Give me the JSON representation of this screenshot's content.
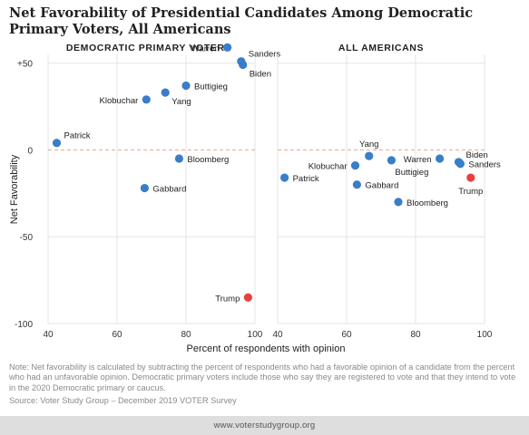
{
  "title": "Net Favorability of Presidential Candidates Among Democratic Primary Voters, All Americans",
  "note": "Note: Net favorability is calculated by subtracting the percent of respondents who had a favorable opinion of a candidate from the percent who had an unfavorable opinion. Democratic primary voters include those who say they are registered to vote and that they intend to vote in the 2020 Democratic primary or caucus.",
  "source": "Source: Voter Study Group – December 2019 VOTER Survey",
  "footer": "www.voterstudygroup.org",
  "colors": {
    "democrat": "#3a7dc9",
    "trump": "#e8413d",
    "zero_line": "#f0a08a",
    "grid": "#e6e6e6"
  },
  "chart_data": [
    {
      "type": "scatter",
      "title": "DEMOCRATIC PRIMARY VOTERS",
      "xlabel": "Percent of respondents with opinion",
      "ylabel": "Net Favorability",
      "xlim": [
        40,
        100
      ],
      "ylim": [
        -100,
        55
      ],
      "xticks": [
        "40",
        "60",
        "80",
        "100"
      ],
      "yticks": [
        "+50",
        "0",
        "-50",
        "-100"
      ],
      "grid": true,
      "points": [
        {
          "label": "Warren",
          "x": 92,
          "y": 59,
          "color": "democrat",
          "label_side": "left"
        },
        {
          "label": "Sanders",
          "x": 96,
          "y": 51,
          "color": "democrat",
          "label_side": "upper-right"
        },
        {
          "label": "Biden",
          "x": 96.5,
          "y": 49,
          "color": "democrat",
          "label_side": "lower-right"
        },
        {
          "label": "Buttigieg",
          "x": 80,
          "y": 37,
          "color": "democrat",
          "label_side": "right"
        },
        {
          "label": "Yang",
          "x": 74,
          "y": 33,
          "color": "democrat",
          "label_side": "lower-right"
        },
        {
          "label": "Klobuchar",
          "x": 68.5,
          "y": 29,
          "color": "democrat",
          "label_side": "left"
        },
        {
          "label": "Patrick",
          "x": 42.5,
          "y": 4,
          "color": "democrat",
          "label_side": "upper-right"
        },
        {
          "label": "Bloomberg",
          "x": 78,
          "y": -5,
          "color": "democrat",
          "label_side": "right"
        },
        {
          "label": "Gabbard",
          "x": 68,
          "y": -22,
          "color": "democrat",
          "label_side": "right"
        },
        {
          "label": "Trump",
          "x": 98,
          "y": -85,
          "color": "trump",
          "label_side": "left"
        }
      ]
    },
    {
      "type": "scatter",
      "title": "ALL AMERICANS",
      "xlabel": "Percent of respondents with opinion",
      "ylabel": "",
      "xlim": [
        40,
        100
      ],
      "ylim": [
        -100,
        55
      ],
      "xticks": [
        "40",
        "60",
        "80",
        "100"
      ],
      "yticks": [],
      "grid": true,
      "points": [
        {
          "label": "Yang",
          "x": 66.5,
          "y": -3.5,
          "color": "democrat",
          "label_side": "above"
        },
        {
          "label": "Klobuchar",
          "x": 62.5,
          "y": -9,
          "color": "democrat",
          "label_side": "left"
        },
        {
          "label": "Buttigieg",
          "x": 73,
          "y": -6,
          "color": "democrat",
          "label_side": "lower-left"
        },
        {
          "label": "Warren",
          "x": 87,
          "y": -5,
          "color": "democrat",
          "label_side": "left"
        },
        {
          "label": "Biden",
          "x": 92.5,
          "y": -7,
          "color": "democrat",
          "label_side": "upper-right"
        },
        {
          "label": "Sanders",
          "x": 93,
          "y": -8,
          "color": "democrat",
          "label_side": "right"
        },
        {
          "label": "Trump",
          "x": 96,
          "y": -16,
          "color": "trump",
          "label_side": "below"
        },
        {
          "label": "Patrick",
          "x": 42,
          "y": -16,
          "color": "democrat",
          "label_side": "right"
        },
        {
          "label": "Gabbard",
          "x": 63,
          "y": -20,
          "color": "democrat",
          "label_side": "right"
        },
        {
          "label": "Bloomberg",
          "x": 75,
          "y": -30,
          "color": "democrat",
          "label_side": "right"
        }
      ]
    }
  ]
}
